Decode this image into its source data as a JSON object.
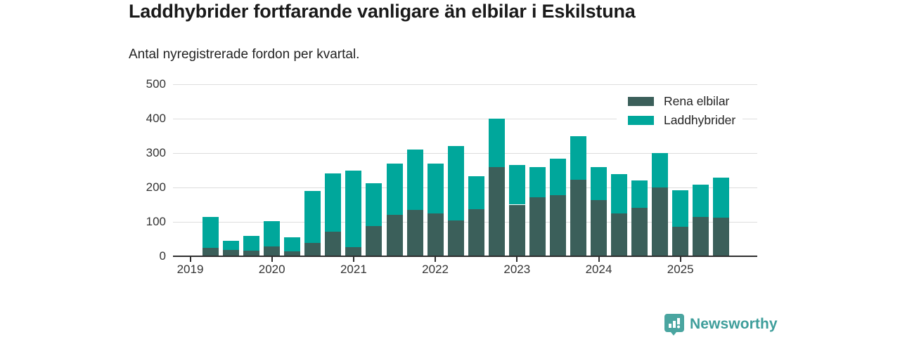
{
  "header": {
    "title": "Laddhybrider fortfarande vanligare än elbilar i Eskilstuna",
    "subtitle": "Antal nyregistrerade fordon per kvartal."
  },
  "footer": {
    "brand": "Newsworthy",
    "brand_color": "#3f9e9b",
    "icon_color": "#4aa5a0"
  },
  "colors": {
    "axis": "#2f2f2f",
    "grid": "#dddddd",
    "tick_text": "#333333",
    "series_dark": "#3b5f5a",
    "series_teal": "#00a79b"
  },
  "chart_data": {
    "type": "bar",
    "stacked": true,
    "title": "Laddhybrider fortfarande vanligare än elbilar i Eskilstuna",
    "subtitle": "Antal nyregistrerade fordon per kvartal.",
    "xlabel": "",
    "ylabel": "",
    "ylim": [
      0,
      500
    ],
    "y_ticks": [
      0,
      100,
      200,
      300,
      400,
      500
    ],
    "grid": "horizontal",
    "legend_position": "top-right",
    "x_tick_labels": [
      "2019",
      "2020",
      "2021",
      "2022",
      "2023",
      "2024",
      "2025"
    ],
    "categories": [
      "2019-Q2",
      "2019-Q3",
      "2019-Q4",
      "2020-Q1",
      "2020-Q2",
      "2020-Q3",
      "2020-Q4",
      "2021-Q1",
      "2021-Q2",
      "2021-Q3",
      "2021-Q4",
      "2022-Q1",
      "2022-Q2",
      "2022-Q3",
      "2022-Q4",
      "2023-Q1",
      "2023-Q2",
      "2023-Q3",
      "2023-Q4",
      "2024-Q1",
      "2024-Q2",
      "2024-Q3",
      "2024-Q4",
      "2025-Q1",
      "2025-Q2",
      "2025-Q3"
    ],
    "series": [
      {
        "name": "Rena elbilar",
        "color": "#3b5f5a",
        "values": [
          25,
          18,
          17,
          29,
          15,
          38,
          71,
          27,
          87,
          121,
          135,
          125,
          105,
          137,
          259,
          150,
          171,
          177,
          222,
          163,
          125,
          140,
          200,
          85,
          115,
          112
        ]
      },
      {
        "name": "Laddhybrider",
        "color": "#00a79b",
        "values": [
          90,
          26,
          43,
          74,
          40,
          151,
          169,
          223,
          126,
          149,
          175,
          145,
          215,
          95,
          141,
          115,
          89,
          106,
          126,
          97,
          113,
          80,
          101,
          106,
          93,
          116
        ]
      }
    ]
  }
}
